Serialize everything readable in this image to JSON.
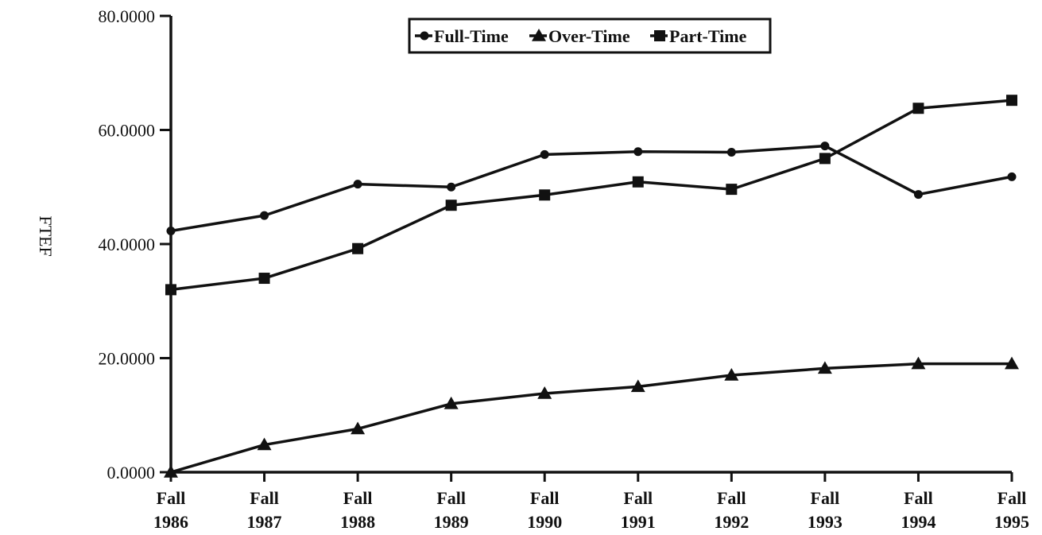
{
  "chart_data": {
    "type": "line",
    "ylabel": "FTEF",
    "xlabel": "",
    "categories": [
      [
        "Fall",
        "1986"
      ],
      [
        "Fall",
        "1987"
      ],
      [
        "Fall",
        "1988"
      ],
      [
        "Fall",
        "1989"
      ],
      [
        "Fall",
        "1990"
      ],
      [
        "Fall",
        "1991"
      ],
      [
        "Fall",
        "1992"
      ],
      [
        "Fall",
        "1993"
      ],
      [
        "Fall",
        "1994"
      ],
      [
        "Fall",
        "1995"
      ]
    ],
    "ylim": [
      0,
      80
    ],
    "yticks": [
      "0.0000",
      "20.0000",
      "40.0000",
      "60.0000",
      "80.0000"
    ],
    "legend_position": "top-center",
    "grid": false,
    "series": [
      {
        "name": "Full-Time",
        "marker": "circle",
        "values": [
          42.3,
          45.0,
          50.5,
          50.0,
          55.7,
          56.2,
          56.1,
          57.2,
          48.7,
          51.8
        ]
      },
      {
        "name": "Over-Time",
        "marker": "triangle",
        "values": [
          0.0,
          4.8,
          7.6,
          12.0,
          13.8,
          15.0,
          17.0,
          18.2,
          19.0,
          19.0
        ]
      },
      {
        "name": "Part-Time",
        "marker": "square",
        "values": [
          32.0,
          34.0,
          39.2,
          46.8,
          48.6,
          50.9,
          49.6,
          55.0,
          63.8,
          65.2
        ]
      }
    ],
    "colors": {
      "ink": "#111111",
      "background": "#ffffff"
    }
  }
}
